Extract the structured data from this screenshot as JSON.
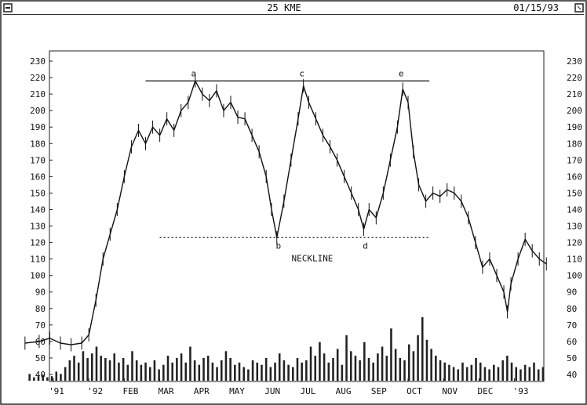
{
  "window": {
    "title": "25 KME",
    "date": "01/15/93"
  },
  "chart_data": {
    "type": "line",
    "title": "25 KME",
    "xlabel": "",
    "ylabel": "",
    "x_ticks": [
      "'91",
      "'92",
      "FEB",
      "MAR",
      "APR",
      "MAY",
      "JUN",
      "JUL",
      "AUG",
      "SEP",
      "OCT",
      "NOV",
      "DEC",
      "'93"
    ],
    "y_ticks": [
      40,
      50,
      60,
      70,
      80,
      90,
      100,
      110,
      120,
      130,
      140,
      150,
      160,
      170,
      180,
      190,
      200,
      210,
      220,
      230
    ],
    "ylim": [
      35,
      235
    ],
    "grid": false,
    "series": [
      {
        "points": [
          [
            -0.8,
            59
          ],
          [
            -0.4,
            60
          ],
          [
            -0.1,
            62
          ],
          [
            0.2,
            59
          ],
          [
            0.5,
            58
          ],
          [
            0.8,
            59
          ],
          [
            1.0,
            64
          ],
          [
            1.2,
            85
          ],
          [
            1.4,
            110
          ],
          [
            1.6,
            125
          ],
          [
            1.8,
            140
          ],
          [
            2.0,
            160
          ],
          [
            2.2,
            178
          ],
          [
            2.4,
            188
          ],
          [
            2.6,
            180
          ],
          [
            2.8,
            190
          ],
          [
            3.0,
            185
          ],
          [
            3.2,
            195
          ],
          [
            3.4,
            188
          ],
          [
            3.6,
            200
          ],
          [
            3.8,
            205
          ],
          [
            4.0,
            218
          ],
          [
            4.2,
            210
          ],
          [
            4.4,
            206
          ],
          [
            4.6,
            212
          ],
          [
            4.8,
            200
          ],
          [
            5.0,
            205
          ],
          [
            5.2,
            196
          ],
          [
            5.4,
            195
          ],
          [
            5.6,
            185
          ],
          [
            5.8,
            175
          ],
          [
            6.0,
            160
          ],
          [
            6.15,
            140
          ],
          [
            6.3,
            123
          ],
          [
            6.5,
            145
          ],
          [
            6.7,
            170
          ],
          [
            6.9,
            195
          ],
          [
            7.05,
            215
          ],
          [
            7.2,
            205
          ],
          [
            7.4,
            195
          ],
          [
            7.6,
            185
          ],
          [
            7.8,
            178
          ],
          [
            8.0,
            170
          ],
          [
            8.2,
            160
          ],
          [
            8.4,
            150
          ],
          [
            8.6,
            140
          ],
          [
            8.75,
            128
          ],
          [
            8.9,
            140
          ],
          [
            9.1,
            135
          ],
          [
            9.3,
            150
          ],
          [
            9.5,
            170
          ],
          [
            9.7,
            190
          ],
          [
            9.85,
            213
          ],
          [
            10.0,
            205
          ],
          [
            10.15,
            175
          ],
          [
            10.3,
            155
          ],
          [
            10.5,
            145
          ],
          [
            10.7,
            150
          ],
          [
            10.9,
            148
          ],
          [
            11.1,
            152
          ],
          [
            11.3,
            150
          ],
          [
            11.5,
            145
          ],
          [
            11.7,
            135
          ],
          [
            11.9,
            120
          ],
          [
            12.1,
            105
          ],
          [
            12.3,
            110
          ],
          [
            12.5,
            100
          ],
          [
            12.7,
            90
          ],
          [
            12.8,
            78
          ],
          [
            12.9,
            95
          ],
          [
            13.1,
            110
          ],
          [
            13.3,
            122
          ],
          [
            13.5,
            115
          ],
          [
            13.7,
            110
          ],
          [
            13.9,
            107
          ]
        ]
      }
    ],
    "volume": [
      6,
      3,
      4,
      5,
      3,
      4,
      8,
      6,
      12,
      18,
      22,
      16,
      26,
      20,
      24,
      30,
      22,
      20,
      18,
      24,
      16,
      20,
      14,
      26,
      18,
      14,
      16,
      12,
      18,
      10,
      14,
      22,
      16,
      20,
      24,
      16,
      30,
      18,
      14,
      20,
      22,
      16,
      12,
      18,
      26,
      20,
      14,
      16,
      12,
      10,
      18,
      16,
      14,
      20,
      12,
      16,
      24,
      18,
      14,
      12,
      20,
      16,
      18,
      30,
      22,
      34,
      24,
      16,
      20,
      28,
      14,
      40,
      26,
      22,
      18,
      34,
      20,
      16,
      24,
      30,
      22,
      46,
      28,
      20,
      18,
      32,
      26,
      40,
      56,
      36,
      28,
      22,
      18,
      16,
      14,
      12,
      10,
      16,
      12,
      14,
      20,
      16,
      12,
      10,
      14,
      12,
      18,
      22,
      16,
      12,
      10,
      14,
      12,
      16,
      10,
      12
    ],
    "annotations": {
      "peaks": [
        "a",
        "c",
        "e"
      ],
      "troughs": [
        "b",
        "d"
      ],
      "neckline_label": "NECKLINE",
      "resistance_level": 218,
      "neckline_level": 123
    }
  }
}
